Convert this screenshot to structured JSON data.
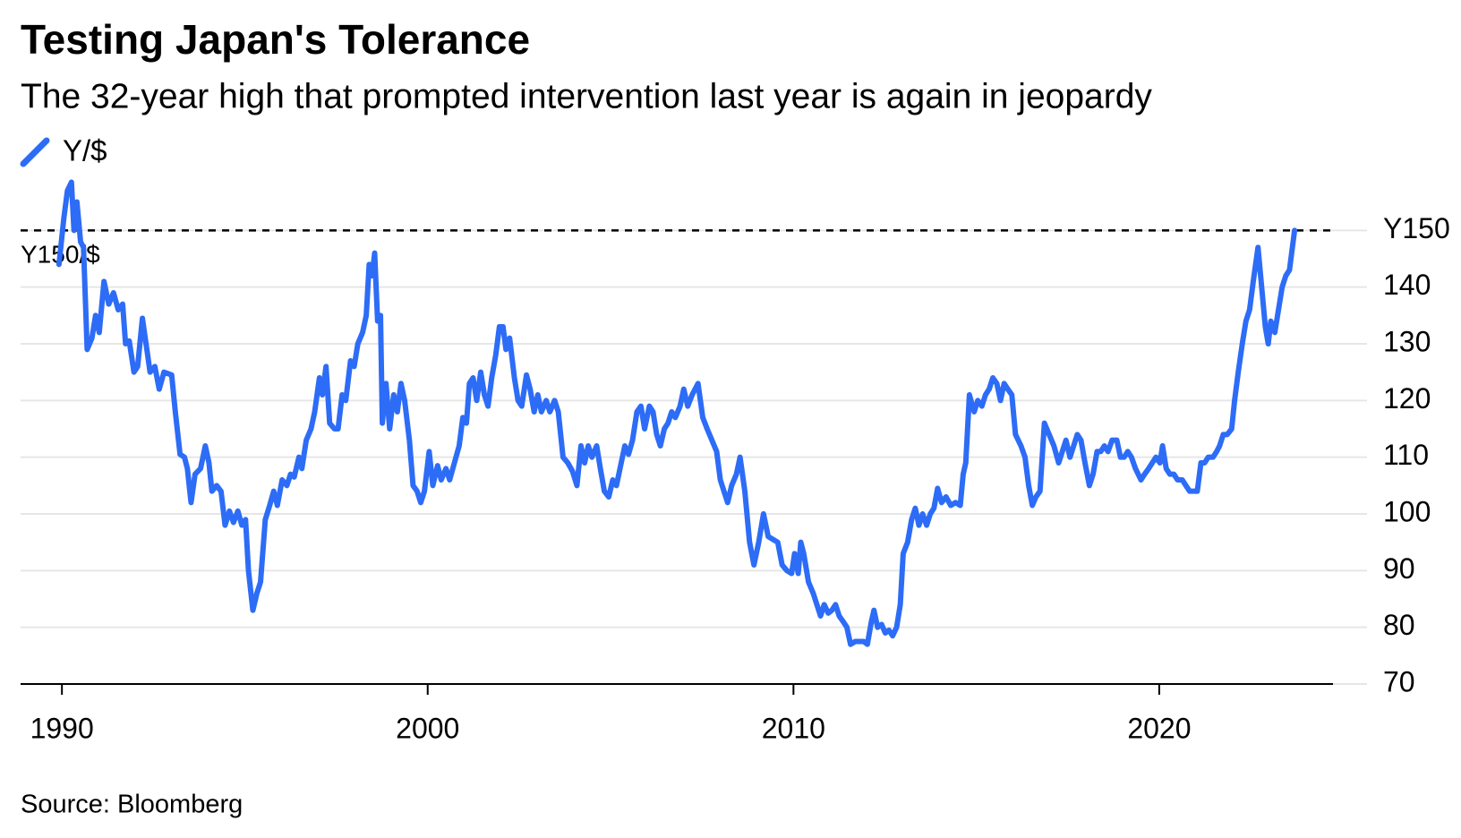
{
  "chart_data": {
    "type": "line",
    "title": "Testing Japan's Tolerance",
    "subtitle": "The 32-year high that prompted intervention last year is again in jeopardy",
    "source": "Source: Bloomberg",
    "annotations": [
      {
        "value": 150,
        "label": "Y150/$"
      }
    ],
    "xlim": [
      1988.87,
      2024.75
    ],
    "xticks": [
      1990,
      2000,
      2010,
      2020
    ],
    "ylim": [
      70,
      160
    ],
    "yticks": [
      70,
      80,
      90,
      100,
      110,
      120,
      130,
      140,
      {
        "value": 150,
        "label": "Y150"
      }
    ],
    "grid": true,
    "x": [
      1989.92,
      1990.05,
      1990.15,
      1990.26,
      1990.33,
      1990.41,
      1990.51,
      1990.59,
      1990.69,
      1990.82,
      1990.92,
      1991.02,
      1991.15,
      1991.28,
      1991.41,
      1991.54,
      1991.66,
      1991.74,
      1991.84,
      1991.97,
      1992.07,
      1992.2,
      1992.3,
      1992.41,
      1992.54,
      1992.66,
      1992.79,
      1993.0,
      1993.1,
      1993.23,
      1993.35,
      1993.43,
      1993.53,
      1993.64,
      1993.79,
      1993.92,
      1994.02,
      1994.1,
      1994.23,
      1994.35,
      1994.46,
      1994.58,
      1994.69,
      1994.81,
      1994.92,
      1995.02,
      1995.1,
      1995.22,
      1995.33,
      1995.43,
      1995.56,
      1995.68,
      1995.79,
      1995.89,
      1996.02,
      1996.15,
      1996.25,
      1996.35,
      1996.48,
      1996.56,
      1996.68,
      1996.81,
      1996.91,
      1997.04,
      1997.12,
      1997.22,
      1997.32,
      1997.45,
      1997.55,
      1997.66,
      1997.76,
      1997.89,
      1997.99,
      1998.09,
      1998.22,
      1998.32,
      1998.4,
      1998.48,
      1998.55,
      1998.63,
      1998.71,
      1998.76,
      1998.86,
      1998.96,
      1999.07,
      1999.17,
      1999.27,
      1999.37,
      1999.5,
      1999.6,
      1999.71,
      1999.81,
      1999.91,
      2000.04,
      2000.14,
      2000.27,
      2000.37,
      2000.5,
      2000.6,
      2000.73,
      2000.86,
      2000.96,
      2001.06,
      2001.14,
      2001.24,
      2001.34,
      2001.45,
      2001.55,
      2001.65,
      2001.75,
      2001.86,
      2001.96,
      2002.06,
      2002.14,
      2002.24,
      2002.37,
      2002.47,
      2002.57,
      2002.7,
      2002.8,
      2002.91,
      2003.01,
      2003.11,
      2003.24,
      2003.34,
      2003.47,
      2003.57,
      2003.7,
      2003.83,
      2003.96,
      2004.08,
      2004.19,
      2004.29,
      2004.39,
      2004.49,
      2004.62,
      2004.72,
      2004.83,
      2004.95,
      2005.06,
      2005.16,
      2005.29,
      2005.39,
      2005.49,
      2005.6,
      2005.72,
      2005.83,
      2005.93,
      2006.06,
      2006.16,
      2006.26,
      2006.36,
      2006.47,
      2006.57,
      2006.67,
      2006.77,
      2006.9,
      2007.0,
      2007.11,
      2007.23,
      2007.39,
      2007.52,
      2007.64,
      2007.77,
      2007.9,
      2008.0,
      2008.1,
      2008.2,
      2008.31,
      2008.44,
      2008.54,
      2008.67,
      2008.8,
      2008.92,
      2009.05,
      2009.18,
      2009.31,
      2009.44,
      2009.57,
      2009.69,
      2009.82,
      2009.95,
      2010.03,
      2010.13,
      2010.2,
      2010.28,
      2010.41,
      2010.54,
      2010.64,
      2010.74,
      2010.84,
      2010.95,
      2011.05,
      2011.15,
      2011.25,
      2011.36,
      2011.46,
      2011.56,
      2011.69,
      2011.82,
      2011.92,
      2012.02,
      2012.13,
      2012.2,
      2012.3,
      2012.41,
      2012.51,
      2012.61,
      2012.71,
      2012.82,
      2012.92,
      2013.0,
      2013.12,
      2013.23,
      2013.33,
      2013.43,
      2013.53,
      2013.64,
      2013.74,
      2013.84,
      2013.94,
      2014.05,
      2014.17,
      2014.3,
      2014.43,
      2014.56,
      2014.64,
      2014.71,
      2014.81,
      2014.94,
      2015.04,
      2015.15,
      2015.25,
      2015.35,
      2015.45,
      2015.56,
      2015.66,
      2015.76,
      2015.86,
      2015.97,
      2016.07,
      2016.22,
      2016.33,
      2016.43,
      2016.53,
      2016.63,
      2016.74,
      2016.86,
      2016.99,
      2017.12,
      2017.25,
      2017.35,
      2017.45,
      2017.56,
      2017.66,
      2017.76,
      2017.86,
      2017.97,
      2018.09,
      2018.19,
      2018.3,
      2018.4,
      2018.5,
      2018.6,
      2018.71,
      2018.84,
      2018.94,
      2019.04,
      2019.14,
      2019.24,
      2019.35,
      2019.5,
      2019.6,
      2019.71,
      2019.81,
      2019.91,
      2020.02,
      2020.09,
      2020.19,
      2020.29,
      2020.4,
      2020.5,
      2020.63,
      2020.73,
      2020.83,
      2020.93,
      2021.04,
      2021.14,
      2021.24,
      2021.34,
      2021.47,
      2021.57,
      2021.65,
      2021.75,
      2021.86,
      2021.98,
      2022.06,
      2022.16,
      2022.27,
      2022.37,
      2022.47,
      2022.57,
      2022.7,
      2022.8,
      2022.9,
      2022.98,
      2023.05,
      2023.16,
      2023.26,
      2023.36,
      2023.46,
      2023.56,
      2023.7
    ],
    "series": [
      {
        "name": "Y/$",
        "color": "#2d6cf6",
        "values": [
          144,
          152,
          157,
          158.5,
          150,
          155,
          148,
          147,
          129,
          131,
          135,
          132,
          141,
          137,
          139,
          136,
          137,
          130,
          130.5,
          125,
          126,
          134.5,
          130,
          125,
          126,
          122,
          125,
          124.5,
          118,
          110.5,
          110,
          108,
          102,
          107,
          108,
          112,
          109,
          104,
          105,
          104,
          98,
          100.5,
          98.5,
          100.5,
          98,
          99,
          90,
          83,
          86,
          88,
          99,
          101.5,
          104,
          101.5,
          106,
          105,
          107,
          106.5,
          110,
          108,
          113,
          115,
          118,
          124,
          121,
          126,
          116,
          115,
          115,
          121,
          120,
          127,
          126,
          130,
          132,
          135,
          144,
          142,
          146,
          134,
          135,
          116,
          123,
          115,
          121,
          118,
          123,
          120,
          113,
          105,
          104,
          102,
          104,
          111,
          105,
          108.5,
          106,
          108,
          106,
          109,
          112,
          117,
          116,
          123,
          124,
          120,
          125,
          121,
          119,
          124,
          128,
          133,
          133,
          129,
          131,
          124,
          120,
          119,
          124.5,
          122,
          118,
          121,
          118,
          120,
          118,
          120,
          118,
          110,
          109,
          107.5,
          105,
          112,
          109,
          112,
          110,
          112,
          108,
          104,
          103,
          106,
          105,
          109,
          112,
          110.5,
          113,
          118,
          119,
          115,
          119,
          118,
          114,
          112,
          115,
          116,
          118,
          117,
          119,
          122,
          119,
          121,
          123,
          117,
          115,
          113,
          111,
          106,
          104,
          102,
          105,
          107,
          110,
          104,
          95,
          91,
          95,
          100,
          96,
          95.5,
          95,
          91,
          90,
          89.5,
          93,
          89.5,
          95,
          93,
          88,
          86,
          84,
          82,
          84,
          82.5,
          83,
          84,
          82,
          81,
          80,
          77,
          77.5,
          77.5,
          77.5,
          77,
          81,
          83,
          80,
          80.5,
          79,
          79.5,
          78.5,
          80,
          84,
          93,
          95,
          99,
          101,
          98,
          100,
          98,
          100,
          101,
          104.5,
          102,
          103,
          101.5,
          102,
          101.5,
          107,
          109,
          121,
          118,
          120,
          119,
          121,
          122,
          124,
          123,
          120,
          123,
          122,
          121,
          114,
          112,
          110,
          105,
          101.5,
          103,
          104,
          116,
          114,
          112,
          109,
          111,
          113,
          110,
          112,
          114,
          113,
          109,
          105,
          107,
          111,
          111,
          112,
          111,
          113,
          113,
          110,
          110,
          111,
          110,
          108,
          106,
          107,
          108,
          109,
          110,
          109,
          112,
          108,
          107,
          107,
          106,
          106,
          105,
          104,
          104,
          104,
          109,
          109,
          110,
          110,
          111,
          112,
          114,
          114,
          115,
          120,
          125,
          130,
          134,
          136,
          141,
          147,
          140,
          133,
          130,
          134,
          132,
          136,
          140,
          142,
          143,
          150
        ]
      }
    ]
  }
}
